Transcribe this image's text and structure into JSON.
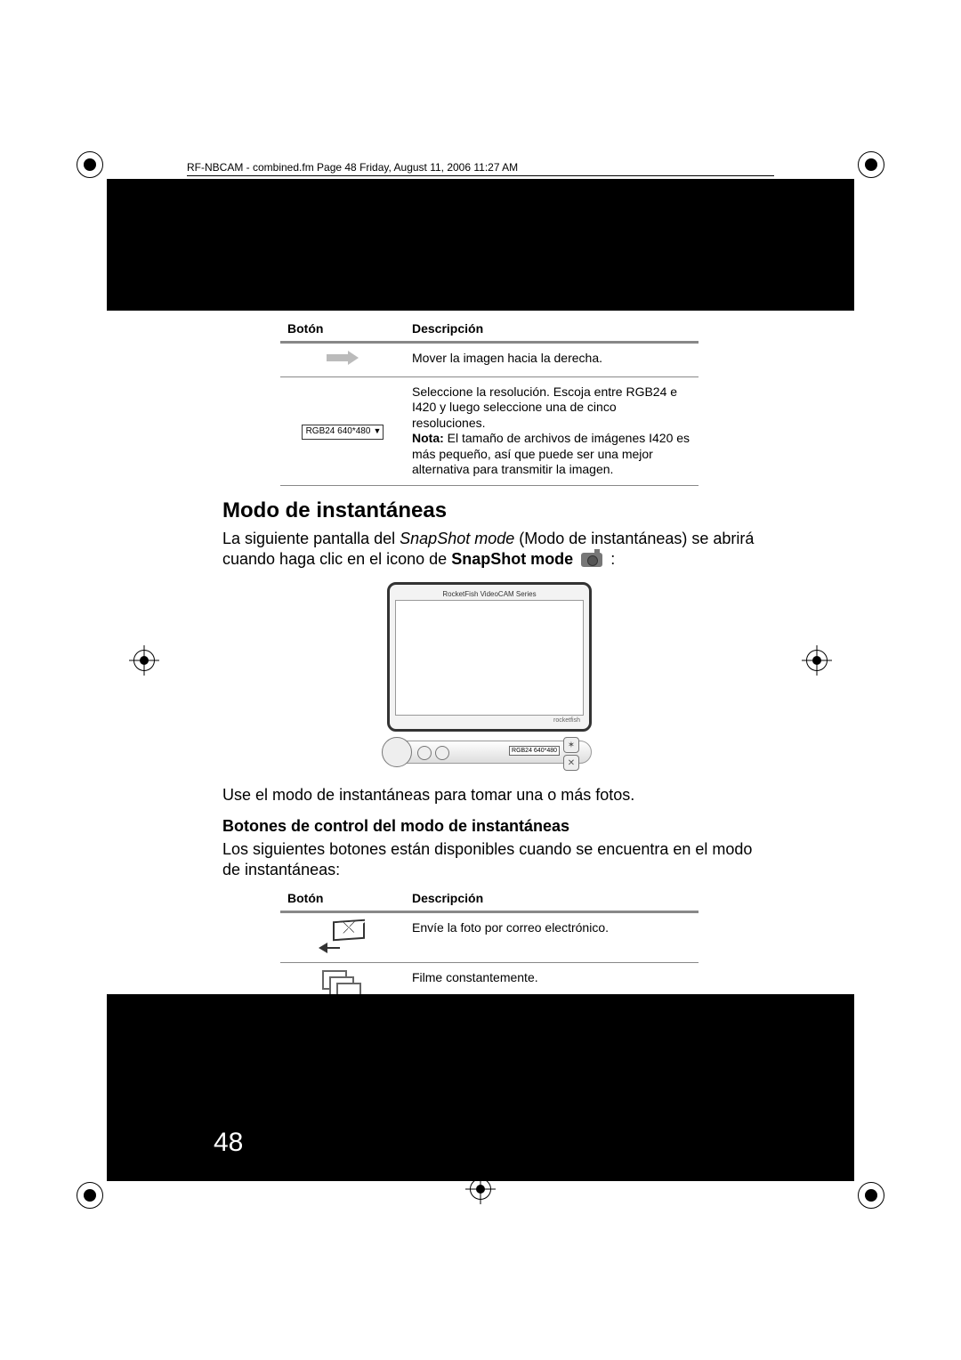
{
  "header_line": "RF-NBCAM - combined.fm  Page 48  Friday, August 11, 2006  11:27 AM",
  "page_number": "48",
  "table1": {
    "col_button": "Botón",
    "col_desc": "Descripción",
    "row1_desc": "Mover la imagen hacia la derecha.",
    "row2_dropdown_label": "RGB24 640*480",
    "row2_desc_line1": "Seleccione la resolución. Escoja entre RGB24 e I420 y luego seleccione una de cinco resoluciones.",
    "row2_note_label": "Nota:",
    "row2_note_rest": " El tamaño de archivos de imágenes I420 es más pequeño, así que puede ser una mejor alternativa para transmitir la imagen."
  },
  "section_title": "Modo de instantáneas",
  "para1_a": "La siguiente pantalla del ",
  "para1_italic": "SnapShot mode",
  "para1_b": " (Modo de instantáneas) se abrirá cuando haga clic en el icono de ",
  "para1_bold": "SnapShot mode",
  "para1_c": " :",
  "snapshot_window": {
    "title": "RocketFish VideoCAM Series",
    "logo": "rocketfish",
    "res_label": "RGB24 640*480"
  },
  "para2": "Use el modo de instantáneas para tomar una o más fotos.",
  "subsection_title": "Botones de control del modo de instantáneas",
  "para3": "Los siguientes botones están disponibles cuando se encuentra en el modo de instantáneas:",
  "table2": {
    "col_button": "Botón",
    "col_desc": "Descripción",
    "row1_desc": "Envíe la foto por correo electrónico.",
    "row2_desc": "Filme constantemente."
  }
}
